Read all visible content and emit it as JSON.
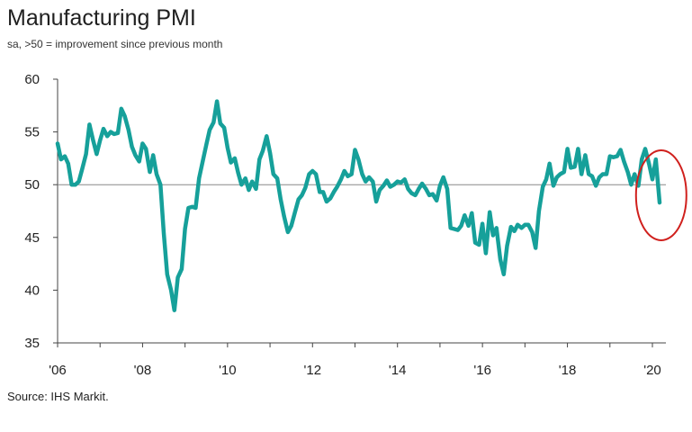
{
  "title": "Manufacturing PMI",
  "subtitle": "sa, >50 = improvement since previous month",
  "source": "Source: IHS Markit.",
  "colors": {
    "line": "#16a09a",
    "baseline": "#888888",
    "axis": "#444444",
    "highlight": "#d0201d"
  },
  "chart_data": {
    "type": "line",
    "title": "Manufacturing PMI",
    "subtitle": "sa, >50 = improvement since previous month",
    "xlabel": "",
    "ylabel": "",
    "ylim": [
      35,
      60
    ],
    "yticks": [
      60,
      55,
      50,
      45,
      40,
      35
    ],
    "xticks": [
      2006,
      2008,
      2010,
      2012,
      2014,
      2016,
      2018,
      2020
    ],
    "xtick_labels": [
      "'06",
      "'08",
      "'10",
      "'12",
      "'14",
      "'16",
      "'18",
      "'20"
    ],
    "reference_line": 50,
    "grid": false,
    "annotation": "red circle highlighting the latest readings",
    "series": [
      {
        "x": [
          2006.0,
          2006.08,
          2006.17,
          2006.25,
          2006.33,
          2006.42,
          2006.5,
          2006.58,
          2006.67,
          2006.75,
          2006.83,
          2006.92,
          2007.0,
          2007.08,
          2007.17,
          2007.25,
          2007.33,
          2007.42,
          2007.5,
          2007.58,
          2007.67,
          2007.75,
          2007.83,
          2007.92,
          2008.0,
          2008.08,
          2008.17,
          2008.25,
          2008.33,
          2008.42,
          2008.5,
          2008.58,
          2008.67,
          2008.75,
          2008.83,
          2008.92,
          2009.0,
          2009.08,
          2009.17,
          2009.25,
          2009.33,
          2009.42,
          2009.5,
          2009.58,
          2009.67,
          2009.75,
          2009.83,
          2009.92,
          2010.0,
          2010.08,
          2010.17,
          2010.25,
          2010.33,
          2010.42,
          2010.5,
          2010.58,
          2010.67,
          2010.75,
          2010.83,
          2010.92,
          2011.0,
          2011.08,
          2011.17,
          2011.25,
          2011.33,
          2011.42,
          2011.5,
          2011.58,
          2011.67,
          2011.75,
          2011.83,
          2011.92,
          2012.0,
          2012.08,
          2012.17,
          2012.25,
          2012.33,
          2012.42,
          2012.5,
          2012.58,
          2012.67,
          2012.75,
          2012.83,
          2012.92,
          2013.0,
          2013.08,
          2013.17,
          2013.25,
          2013.33,
          2013.42,
          2013.5,
          2013.58,
          2013.67,
          2013.75,
          2013.83,
          2013.92,
          2014.0,
          2014.08,
          2014.17,
          2014.25,
          2014.33,
          2014.42,
          2014.5,
          2014.58,
          2014.67,
          2014.75,
          2014.83,
          2014.92,
          2015.0,
          2015.08,
          2015.17,
          2015.25,
          2015.33,
          2015.42,
          2015.5,
          2015.58,
          2015.67,
          2015.75,
          2015.83,
          2015.92,
          2016.0,
          2016.08,
          2016.17,
          2016.25,
          2016.33,
          2016.42,
          2016.5,
          2016.58,
          2016.67,
          2016.75,
          2016.83,
          2016.92,
          2017.0,
          2017.08,
          2017.17,
          2017.25,
          2017.33,
          2017.42,
          2017.5,
          2017.58,
          2017.67,
          2017.75,
          2017.83,
          2017.92,
          2018.0,
          2018.08,
          2018.17,
          2018.25,
          2018.33,
          2018.42,
          2018.5,
          2018.58,
          2018.67,
          2018.75,
          2018.83,
          2018.92,
          2019.0,
          2019.08,
          2019.17,
          2019.25,
          2019.33,
          2019.42,
          2019.5,
          2019.58,
          2019.67,
          2019.75,
          2019.83,
          2019.92,
          2020.0,
          2020.08,
          2020.17
        ],
        "values": [
          53.9,
          52.4,
          52.7,
          52.0,
          50.0,
          50.0,
          50.3,
          51.5,
          52.9,
          55.7,
          54.3,
          52.9,
          54.2,
          55.3,
          54.6,
          55.0,
          54.8,
          54.9,
          57.2,
          56.5,
          55.2,
          53.6,
          52.8,
          52.2,
          53.9,
          53.4,
          51.2,
          52.8,
          51.0,
          50.0,
          45.4,
          41.5,
          40.0,
          38.1,
          41.2,
          42.0,
          45.8,
          47.8,
          47.9,
          47.8,
          50.6,
          52.3,
          53.8,
          55.2,
          55.9,
          57.9,
          55.8,
          55.4,
          53.5,
          52.1,
          52.5,
          51.1,
          50.0,
          50.6,
          49.5,
          50.3,
          49.6,
          52.4,
          53.2,
          54.6,
          53.0,
          51.0,
          50.6,
          48.6,
          47.0,
          45.5,
          46.1,
          47.3,
          48.6,
          49.0,
          49.7,
          51.0,
          51.3,
          51.0,
          49.3,
          49.3,
          48.4,
          48.7,
          49.3,
          49.8,
          50.5,
          51.3,
          50.8,
          51.0,
          53.3,
          52.4,
          51.0,
          50.3,
          50.7,
          50.3,
          48.4,
          49.5,
          49.9,
          50.4,
          49.8,
          50.0,
          50.3,
          50.2,
          50.5,
          49.6,
          49.2,
          49.0,
          49.6,
          50.1,
          49.6,
          49.0,
          49.1,
          48.5,
          49.9,
          50.7,
          49.6,
          45.9,
          45.8,
          45.7,
          46.1,
          47.1,
          46.1,
          47.3,
          44.5,
          44.3,
          46.3,
          43.5,
          47.4,
          45.2,
          45.9,
          42.9,
          41.5,
          44.2,
          46.0,
          45.6,
          46.2,
          45.9,
          46.2,
          46.2,
          45.5,
          44.0,
          47.5,
          49.8,
          50.5,
          52.0,
          49.9,
          50.7,
          51.0,
          51.2,
          53.4,
          51.6,
          51.7,
          53.4,
          51.0,
          52.8,
          51.0,
          50.8,
          49.9,
          50.7,
          51.0,
          51.0,
          52.7,
          52.6,
          52.7,
          53.3,
          52.2,
          51.2,
          50.0,
          51.0,
          49.9,
          52.4,
          53.4,
          52.0,
          50.5,
          52.4,
          48.3
        ]
      }
    ]
  }
}
